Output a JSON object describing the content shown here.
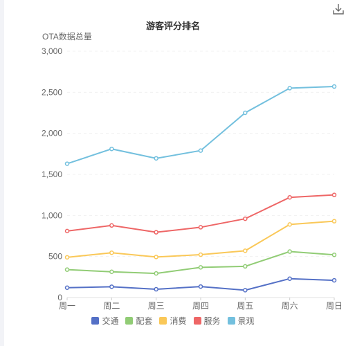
{
  "chart_data": {
    "type": "line",
    "title": "游客评分排名",
    "ylabel": "OTA数据总量",
    "xlabel": "",
    "categories": [
      "周一",
      "周二",
      "周三",
      "周四",
      "周五",
      "周六",
      "周日"
    ],
    "ylim": [
      0,
      3000
    ],
    "yticks": [
      0,
      500,
      1000,
      1500,
      2000,
      2500,
      3000
    ],
    "ytick_labels": [
      "0",
      "500",
      "1,000",
      "1,500",
      "2,000",
      "2,500",
      "3,000"
    ],
    "grid": true,
    "legend_position": "bottom-center",
    "series": [
      {
        "name": "交通",
        "color": "#5470c6",
        "values": [
          120,
          132,
          101,
          134,
          90,
          230,
          210
        ]
      },
      {
        "name": "配套",
        "color": "#91cc75",
        "values": [
          340,
          314,
          294,
          368,
          380,
          560,
          520
        ]
      },
      {
        "name": "消费",
        "color": "#fac858",
        "values": [
          490,
          546,
          494,
          522,
          570,
          890,
          930
        ]
      },
      {
        "name": "服务",
        "color": "#ee6666",
        "values": [
          810,
          878,
          795,
          856,
          960,
          1220,
          1250
        ]
      },
      {
        "name": "景观",
        "color": "#73c0de",
        "values": [
          1630,
          1810,
          1695,
          1790,
          2250,
          2550,
          2570
        ]
      }
    ]
  },
  "toolbar": {
    "download_icon": "download-icon"
  }
}
